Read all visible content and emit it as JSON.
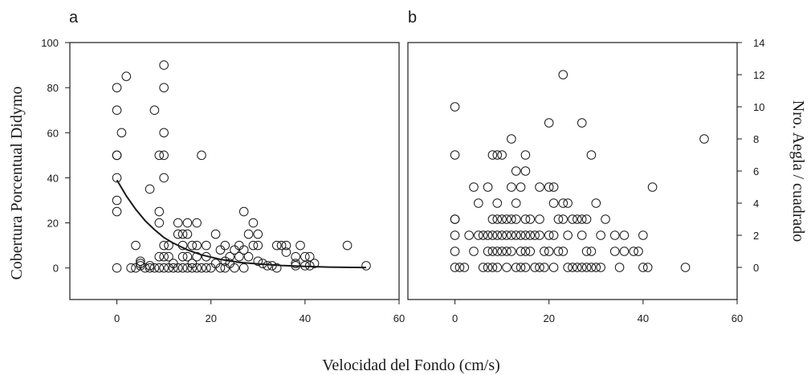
{
  "figure": {
    "xlabel": "Velocidad del Fondo (cm/s)",
    "colors": {
      "ink": "#1a1a1a",
      "background": "#ffffff"
    }
  },
  "chart_data": [
    {
      "panel": "a",
      "type": "scatter",
      "ylabel": "Cobertura Porcentual Didymo",
      "xlim": [
        -10,
        60
      ],
      "ylim": [
        -14,
        100
      ],
      "xticks": [
        0,
        20,
        40,
        60
      ],
      "yticks": [
        0,
        20,
        40,
        60,
        80,
        100
      ],
      "marker": "open-circle",
      "points": [
        [
          0,
          80
        ],
        [
          0,
          70
        ],
        [
          0,
          50
        ],
        [
          0,
          50
        ],
        [
          0,
          40
        ],
        [
          0,
          30
        ],
        [
          0,
          25
        ],
        [
          0,
          0
        ],
        [
          1,
          60
        ],
        [
          2,
          85
        ],
        [
          3,
          0
        ],
        [
          4,
          10
        ],
        [
          4,
          0
        ],
        [
          5,
          3
        ],
        [
          5,
          2
        ],
        [
          5,
          1
        ],
        [
          6,
          0
        ],
        [
          7,
          35
        ],
        [
          7,
          1
        ],
        [
          7,
          0
        ],
        [
          8,
          70
        ],
        [
          8,
          0
        ],
        [
          9,
          50
        ],
        [
          9,
          25
        ],
        [
          9,
          20
        ],
        [
          9,
          5
        ],
        [
          9,
          0
        ],
        [
          10,
          90
        ],
        [
          10,
          80
        ],
        [
          10,
          60
        ],
        [
          10,
          50
        ],
        [
          10,
          40
        ],
        [
          10,
          10
        ],
        [
          10,
          5
        ],
        [
          10,
          0
        ],
        [
          11,
          10
        ],
        [
          11,
          5
        ],
        [
          11,
          0
        ],
        [
          12,
          2
        ],
        [
          12,
          0
        ],
        [
          13,
          20
        ],
        [
          13,
          15
        ],
        [
          13,
          0
        ],
        [
          14,
          15
        ],
        [
          14,
          10
        ],
        [
          14,
          5
        ],
        [
          14,
          0
        ],
        [
          15,
          20
        ],
        [
          15,
          15
        ],
        [
          15,
          5
        ],
        [
          15,
          0
        ],
        [
          16,
          10
        ],
        [
          16,
          2
        ],
        [
          16,
          0
        ],
        [
          17,
          20
        ],
        [
          17,
          10
        ],
        [
          17,
          5
        ],
        [
          17,
          0
        ],
        [
          18,
          50
        ],
        [
          18,
          0
        ],
        [
          19,
          10
        ],
        [
          19,
          5
        ],
        [
          19,
          0
        ],
        [
          20,
          0
        ],
        [
          21,
          15
        ],
        [
          21,
          2
        ],
        [
          22,
          8
        ],
        [
          22,
          0
        ],
        [
          23,
          10
        ],
        [
          23,
          3
        ],
        [
          23,
          0
        ],
        [
          24,
          5
        ],
        [
          24,
          2
        ],
        [
          25,
          8
        ],
        [
          25,
          0
        ],
        [
          26,
          10
        ],
        [
          26,
          5
        ],
        [
          27,
          25
        ],
        [
          27,
          8
        ],
        [
          27,
          0
        ],
        [
          28,
          15
        ],
        [
          28,
          5
        ],
        [
          29,
          20
        ],
        [
          29,
          10
        ],
        [
          30,
          15
        ],
        [
          30,
          10
        ],
        [
          30,
          3
        ],
        [
          31,
          2
        ],
        [
          32,
          1
        ],
        [
          33,
          1
        ],
        [
          34,
          10
        ],
        [
          34,
          0
        ],
        [
          35,
          10
        ],
        [
          36,
          10
        ],
        [
          36,
          7
        ],
        [
          38,
          5
        ],
        [
          38,
          2
        ],
        [
          38,
          1
        ],
        [
          39,
          10
        ],
        [
          40,
          5
        ],
        [
          40,
          1
        ],
        [
          41,
          5
        ],
        [
          41,
          1
        ],
        [
          42,
          2
        ],
        [
          49,
          10
        ],
        [
          53,
          1
        ]
      ],
      "fit_curve": {
        "type": "exponential-decay",
        "points": [
          [
            0,
            39
          ],
          [
            2,
            32
          ],
          [
            4,
            26
          ],
          [
            6,
            21
          ],
          [
            8,
            17
          ],
          [
            10,
            13.5
          ],
          [
            12,
            11
          ],
          [
            15,
            8
          ],
          [
            18,
            5.8
          ],
          [
            22,
            3.8
          ],
          [
            26,
            2.5
          ],
          [
            30,
            1.8
          ],
          [
            35,
            1.1
          ],
          [
            40,
            0.7
          ],
          [
            45,
            0.4
          ],
          [
            50,
            0.25
          ],
          [
            53,
            0.2
          ]
        ]
      }
    },
    {
      "panel": "b",
      "type": "scatter",
      "ylabel": "Nro. Aegla / cuadrado",
      "xlim": [
        -10,
        60
      ],
      "ylim": [
        -2,
        14
      ],
      "xticks": [
        0,
        20,
        40,
        60
      ],
      "yticks": [
        0,
        2,
        4,
        6,
        8,
        10,
        12,
        14
      ],
      "marker": "open-circle",
      "points": [
        [
          0,
          10
        ],
        [
          0,
          7
        ],
        [
          0,
          3
        ],
        [
          0,
          3
        ],
        [
          0,
          2
        ],
        [
          0,
          1
        ],
        [
          0,
          0
        ],
        [
          1,
          0
        ],
        [
          2,
          0
        ],
        [
          3,
          2
        ],
        [
          4,
          5
        ],
        [
          4,
          1
        ],
        [
          5,
          4
        ],
        [
          5,
          2
        ],
        [
          6,
          2
        ],
        [
          6,
          0
        ],
        [
          7,
          5
        ],
        [
          7,
          2
        ],
        [
          7,
          1
        ],
        [
          7,
          0
        ],
        [
          8,
          7
        ],
        [
          8,
          3
        ],
        [
          8,
          2
        ],
        [
          8,
          1
        ],
        [
          8,
          0
        ],
        [
          9,
          7
        ],
        [
          9,
          4
        ],
        [
          9,
          3
        ],
        [
          9,
          2
        ],
        [
          9,
          1
        ],
        [
          9,
          0
        ],
        [
          10,
          7
        ],
        [
          10,
          3
        ],
        [
          10,
          2
        ],
        [
          10,
          1
        ],
        [
          11,
          3
        ],
        [
          11,
          2
        ],
        [
          11,
          1
        ],
        [
          11,
          0
        ],
        [
          12,
          8
        ],
        [
          12,
          5
        ],
        [
          12,
          3
        ],
        [
          12,
          2
        ],
        [
          12,
          1
        ],
        [
          13,
          6
        ],
        [
          13,
          4
        ],
        [
          13,
          3
        ],
        [
          13,
          2
        ],
        [
          13,
          0
        ],
        [
          14,
          5
        ],
        [
          14,
          2
        ],
        [
          14,
          1
        ],
        [
          14,
          0
        ],
        [
          15,
          7
        ],
        [
          15,
          6
        ],
        [
          15,
          3
        ],
        [
          15,
          2
        ],
        [
          15,
          1
        ],
        [
          15,
          0
        ],
        [
          16,
          3
        ],
        [
          16,
          2
        ],
        [
          16,
          1
        ],
        [
          17,
          2
        ],
        [
          17,
          0
        ],
        [
          18,
          5
        ],
        [
          18,
          3
        ],
        [
          18,
          2
        ],
        [
          18,
          0
        ],
        [
          19,
          1
        ],
        [
          19,
          0
        ],
        [
          20,
          9
        ],
        [
          20,
          5
        ],
        [
          20,
          2
        ],
        [
          20,
          1
        ],
        [
          21,
          5
        ],
        [
          21,
          4
        ],
        [
          21,
          2
        ],
        [
          21,
          0
        ],
        [
          22,
          3
        ],
        [
          22,
          1
        ],
        [
          23,
          12
        ],
        [
          23,
          4
        ],
        [
          23,
          3
        ],
        [
          23,
          1
        ],
        [
          24,
          4
        ],
        [
          24,
          2
        ],
        [
          24,
          0
        ],
        [
          25,
          3
        ],
        [
          25,
          0
        ],
        [
          26,
          3
        ],
        [
          26,
          0
        ],
        [
          27,
          9
        ],
        [
          27,
          3
        ],
        [
          27,
          2
        ],
        [
          27,
          0
        ],
        [
          28,
          3
        ],
        [
          28,
          1
        ],
        [
          28,
          0
        ],
        [
          29,
          7
        ],
        [
          29,
          1
        ],
        [
          29,
          0
        ],
        [
          30,
          4
        ],
        [
          30,
          0
        ],
        [
          31,
          2
        ],
        [
          31,
          0
        ],
        [
          32,
          3
        ],
        [
          34,
          2
        ],
        [
          34,
          1
        ],
        [
          35,
          0
        ],
        [
          36,
          2
        ],
        [
          36,
          1
        ],
        [
          38,
          1
        ],
        [
          39,
          1
        ],
        [
          40,
          2
        ],
        [
          40,
          0
        ],
        [
          41,
          0
        ],
        [
          42,
          5
        ],
        [
          49,
          0
        ],
        [
          53,
          8
        ]
      ]
    }
  ]
}
